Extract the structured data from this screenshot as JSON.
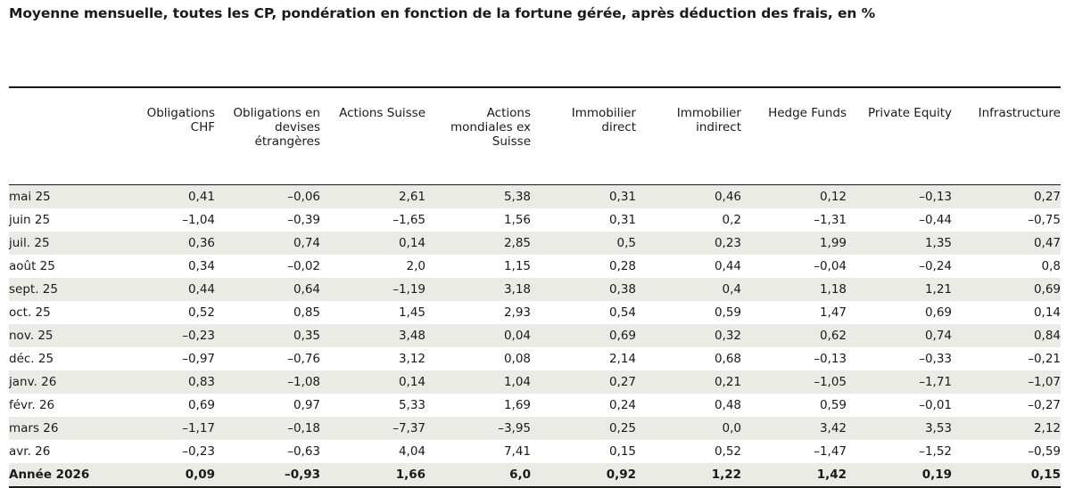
{
  "title": "Moyenne mensuelle, toutes les CP, pondération en fonction de la fortune gérée, après déduction des frais, en %",
  "columns": [
    "",
    "Obligations CHF",
    "Obligations en devises étrangères",
    "Actions Suisse",
    "Actions mondiales ex Suisse",
    "Immobilier direct",
    "Immobilier indirect",
    "Hedge Funds",
    "Private Equity",
    "Infrastructure"
  ],
  "rows": [
    [
      "mai 25",
      "0,41",
      "–0,06",
      "2,61",
      "5,38",
      "0,31",
      "0,46",
      "0,12",
      "–0,13",
      "0,27"
    ],
    [
      "juin 25",
      "–1,04",
      "–0,39",
      "–1,65",
      "1,56",
      "0,31",
      "0,2",
      "–1,31",
      "–0,44",
      "–0,75"
    ],
    [
      "juil. 25",
      "0,36",
      "0,74",
      "0,14",
      "2,85",
      "0,5",
      "0,23",
      "1,99",
      "1,35",
      "0,47"
    ],
    [
      "août 25",
      "0,34",
      "–0,02",
      "2,0",
      "1,15",
      "0,28",
      "0,44",
      "–0,04",
      "–0,24",
      "0,8"
    ],
    [
      "sept. 25",
      "0,44",
      "0,64",
      "–1,19",
      "3,18",
      "0,38",
      "0,4",
      "1,18",
      "1,21",
      "0,69"
    ],
    [
      "oct. 25",
      "0,52",
      "0,85",
      "1,45",
      "2,93",
      "0,54",
      "0,59",
      "1,47",
      "0,69",
      "0,14"
    ],
    [
      "nov. 25",
      "–0,23",
      "0,35",
      "3,48",
      "0,04",
      "0,69",
      "0,32",
      "0,62",
      "0,74",
      "0,84"
    ],
    [
      "déc. 25",
      "–0,97",
      "–0,76",
      "3,12",
      "0,08",
      "2,14",
      "0,68",
      "–0,13",
      "–0,33",
      "–0,21"
    ],
    [
      "janv. 26",
      "0,83",
      "–1,08",
      "0,14",
      "1,04",
      "0,27",
      "0,21",
      "–1,05",
      "–1,71",
      "–1,07"
    ],
    [
      "févr. 26",
      "0,69",
      "0,97",
      "5,33",
      "1,69",
      "0,24",
      "0,48",
      "0,59",
      "–0,01",
      "–0,27"
    ],
    [
      "mars 26",
      "–1,17",
      "–0,18",
      "–7,37",
      "–3,95",
      "0,25",
      "0,0",
      "3,42",
      "3,53",
      "2,12"
    ],
    [
      "avr. 26",
      "–0,23",
      "–0,63",
      "4,04",
      "7,41",
      "0,15",
      "0,52",
      "–1,47",
      "–1,52",
      "–0,59"
    ]
  ],
  "total": [
    "Année 2026",
    "0,09",
    "–0,93",
    "1,66",
    "6,0",
    "0,92",
    "1,22",
    "1,42",
    "0,19",
    "0,15"
  ]
}
